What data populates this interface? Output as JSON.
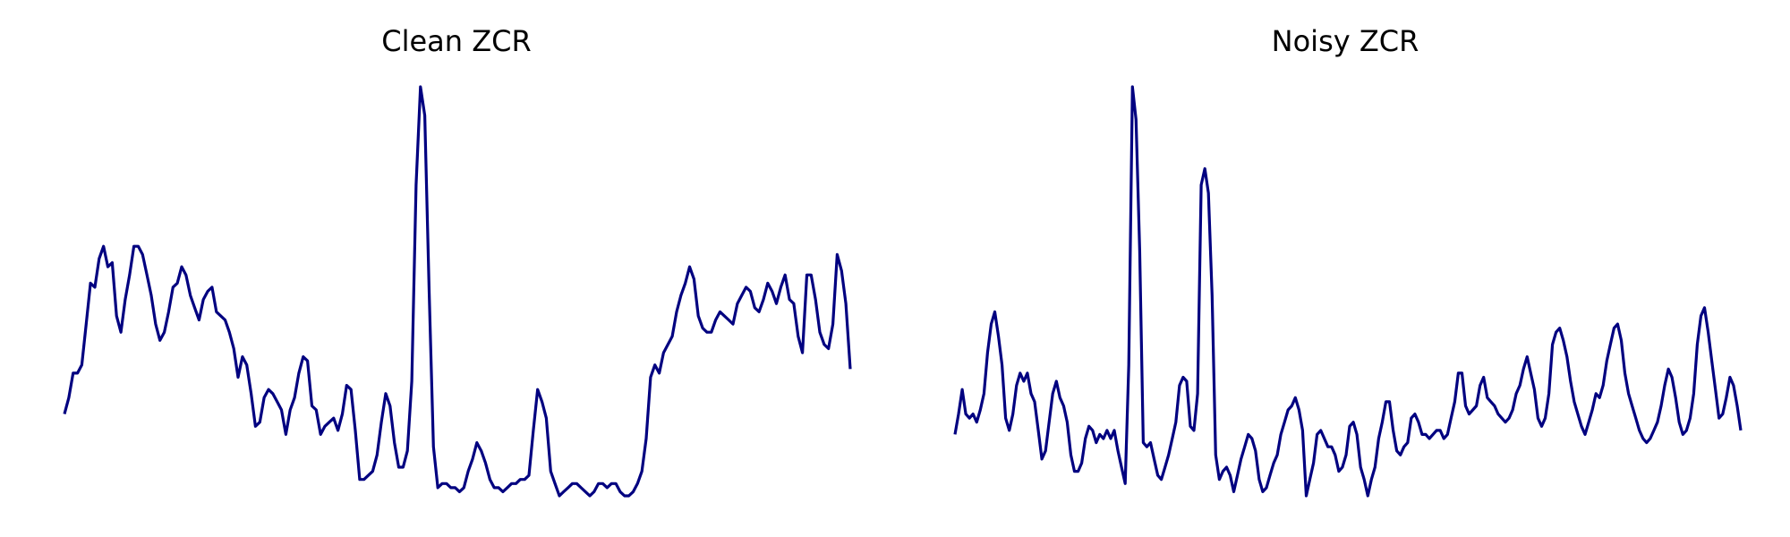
{
  "chart_data": [
    {
      "type": "line",
      "title": "Clean ZCR",
      "xlabel": "",
      "ylabel": "",
      "axes_visible": false,
      "grid": false,
      "color": "#000080",
      "ylim": [
        0,
        1
      ],
      "values": [
        0.2,
        0.24,
        0.3,
        0.3,
        0.32,
        0.42,
        0.52,
        0.51,
        0.58,
        0.61,
        0.56,
        0.57,
        0.44,
        0.4,
        0.48,
        0.54,
        0.61,
        0.61,
        0.59,
        0.54,
        0.49,
        0.42,
        0.38,
        0.4,
        0.45,
        0.51,
        0.52,
        0.56,
        0.54,
        0.49,
        0.46,
        0.43,
        0.48,
        0.5,
        0.51,
        0.45,
        0.44,
        0.43,
        0.4,
        0.36,
        0.29,
        0.34,
        0.32,
        0.25,
        0.17,
        0.18,
        0.24,
        0.26,
        0.25,
        0.23,
        0.21,
        0.15,
        0.21,
        0.24,
        0.3,
        0.34,
        0.33,
        0.22,
        0.21,
        0.15,
        0.17,
        0.18,
        0.19,
        0.16,
        0.2,
        0.27,
        0.26,
        0.16,
        0.04,
        0.04,
        0.05,
        0.06,
        0.1,
        0.18,
        0.25,
        0.22,
        0.13,
        0.07,
        0.07,
        0.11,
        0.28,
        0.76,
        1.0,
        0.93,
        0.5,
        0.12,
        0.02,
        0.03,
        0.03,
        0.02,
        0.02,
        0.01,
        0.02,
        0.06,
        0.09,
        0.13,
        0.11,
        0.08,
        0.04,
        0.02,
        0.02,
        0.01,
        0.02,
        0.03,
        0.03,
        0.04,
        0.04,
        0.05,
        0.16,
        0.26,
        0.23,
        0.19,
        0.06,
        0.03,
        0.0,
        0.01,
        0.02,
        0.03,
        0.03,
        0.02,
        0.01,
        0.0,
        0.01,
        0.03,
        0.03,
        0.02,
        0.03,
        0.03,
        0.01,
        0.0,
        0.0,
        0.01,
        0.03,
        0.06,
        0.14,
        0.29,
        0.32,
        0.3,
        0.35,
        0.37,
        0.39,
        0.45,
        0.49,
        0.52,
        0.56,
        0.53,
        0.44,
        0.41,
        0.4,
        0.4,
        0.43,
        0.45,
        0.44,
        0.43,
        0.42,
        0.47,
        0.49,
        0.51,
        0.5,
        0.46,
        0.45,
        0.48,
        0.52,
        0.5,
        0.47,
        0.51,
        0.54,
        0.48,
        0.47,
        0.39,
        0.35,
        0.54,
        0.54,
        0.48,
        0.4,
        0.37,
        0.36,
        0.42,
        0.59,
        0.55,
        0.47,
        0.31
      ],
      "spikes": [
        [
          81,
          0.76
        ],
        [
          82,
          1.0
        ],
        [
          83,
          0.93
        ]
      ]
    },
    {
      "type": "line",
      "title": "Noisy ZCR",
      "xlabel": "",
      "ylabel": "",
      "axes_visible": false,
      "grid": false,
      "color": "#000080",
      "ylim": [
        0,
        1
      ],
      "values": [
        0.15,
        0.2,
        0.26,
        0.2,
        0.19,
        0.2,
        0.18,
        0.21,
        0.25,
        0.35,
        0.42,
        0.45,
        0.39,
        0.32,
        0.19,
        0.16,
        0.2,
        0.27,
        0.3,
        0.28,
        0.3,
        0.25,
        0.23,
        0.16,
        0.09,
        0.11,
        0.18,
        0.25,
        0.28,
        0.24,
        0.22,
        0.18,
        0.1,
        0.06,
        0.06,
        0.08,
        0.14,
        0.17,
        0.16,
        0.13,
        0.15,
        0.14,
        0.16,
        0.14,
        0.16,
        0.11,
        0.07,
        0.03,
        0.32,
        1.0,
        0.92,
        0.6,
        0.13,
        0.12,
        0.13,
        0.09,
        0.05,
        0.04,
        0.07,
        0.1,
        0.14,
        0.18,
        0.27,
        0.29,
        0.28,
        0.17,
        0.16,
        0.25,
        0.76,
        0.8,
        0.74,
        0.49,
        0.1,
        0.04,
        0.06,
        0.07,
        0.05,
        0.01,
        0.05,
        0.09,
        0.12,
        0.15,
        0.14,
        0.11,
        0.04,
        0.01,
        0.02,
        0.05,
        0.08,
        0.1,
        0.15,
        0.18,
        0.21,
        0.22,
        0.24,
        0.21,
        0.16,
        0.0,
        0.04,
        0.08,
        0.15,
        0.16,
        0.14,
        0.12,
        0.12,
        0.1,
        0.06,
        0.07,
        0.1,
        0.17,
        0.18,
        0.15,
        0.07,
        0.04,
        0.0,
        0.04,
        0.07,
        0.14,
        0.18,
        0.23,
        0.23,
        0.16,
        0.11,
        0.1,
        0.12,
        0.13,
        0.19,
        0.2,
        0.18,
        0.15,
        0.15,
        0.14,
        0.15,
        0.16,
        0.16,
        0.14,
        0.15,
        0.19,
        0.23,
        0.3,
        0.3,
        0.22,
        0.2,
        0.21,
        0.22,
        0.27,
        0.29,
        0.24,
        0.23,
        0.22,
        0.2,
        0.19,
        0.18,
        0.19,
        0.21,
        0.25,
        0.27,
        0.31,
        0.34,
        0.3,
        0.26,
        0.19,
        0.17,
        0.19,
        0.25,
        0.37,
        0.4,
        0.41,
        0.38,
        0.34,
        0.28,
        0.23,
        0.2,
        0.17,
        0.15,
        0.18,
        0.21,
        0.25,
        0.24,
        0.27,
        0.33,
        0.37,
        0.41,
        0.42,
        0.38,
        0.3,
        0.25,
        0.22,
        0.19,
        0.16,
        0.14,
        0.13,
        0.14,
        0.16,
        0.18,
        0.22,
        0.27,
        0.31,
        0.29,
        0.24,
        0.18,
        0.15,
        0.16,
        0.19,
        0.25,
        0.37,
        0.44,
        0.46,
        0.4,
        0.33,
        0.26,
        0.19,
        0.2,
        0.24,
        0.29,
        0.27,
        0.22,
        0.16
      ]
    }
  ]
}
